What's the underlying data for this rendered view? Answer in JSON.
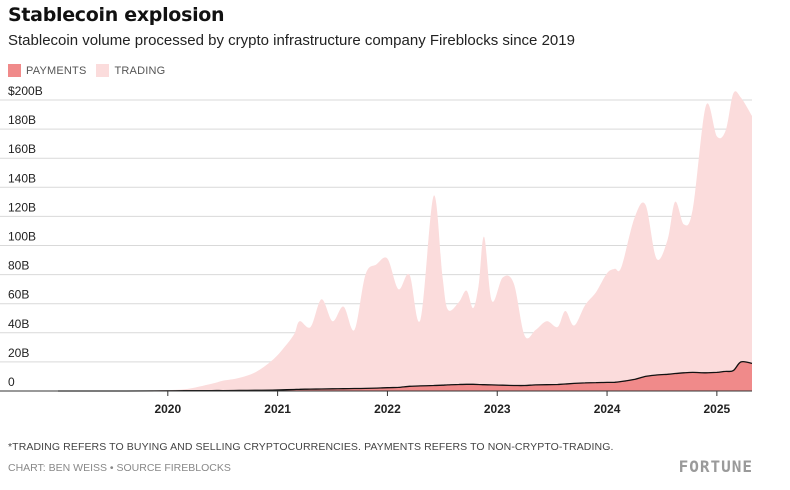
{
  "header": {
    "title": "Stablecoin explosion",
    "subtitle": "Stablecoin volume processed by crypto infrastructure company Fireblocks since 2019"
  },
  "legend": {
    "payments_label": "PAYMENTS",
    "trading_label": "TRADING"
  },
  "footer": {
    "footnote": "*TRADING REFERS TO BUYING AND SELLING CRYPTOCURRENCIES. PAYMENTS REFERS TO NON-CRYPTO-TRADING.",
    "credit": "CHART: BEN WEISS • SOURCE FIREBLOCKS",
    "logo": "FORTUNE"
  },
  "colors": {
    "payments": "#f08a8a",
    "trading": "#fbdcdc",
    "outline": "#111111",
    "grid": "#d9d9d9"
  },
  "chart_data": {
    "type": "area",
    "stacked": true,
    "x_unit": "year",
    "xlim": [
      2019,
      2025.32
    ],
    "ylim": [
      0,
      200
    ],
    "y_ticks": [
      0,
      20,
      40,
      60,
      80,
      100,
      120,
      140,
      160,
      180,
      200
    ],
    "y_tick_labels": [
      "0",
      "20B",
      "40B",
      "60B",
      "80B",
      "100B",
      "120B",
      "140B",
      "160B",
      "180B",
      "$200B"
    ],
    "x_ticks": [
      2020,
      2021,
      2022,
      2023,
      2024,
      2025
    ],
    "x_tick_labels": [
      "2020",
      "2021",
      "2022",
      "2023",
      "2024",
      "2025"
    ],
    "grid": true,
    "legend_position": "top-left",
    "x": [
      2019.0,
      2019.5,
      2019.9,
      2020.15,
      2020.4,
      2020.5,
      2020.65,
      2020.8,
      2020.95,
      2021.05,
      2021.15,
      2021.2,
      2021.3,
      2021.4,
      2021.5,
      2021.6,
      2021.7,
      2021.8,
      2021.9,
      2022.0,
      2022.1,
      2022.2,
      2022.3,
      2022.42,
      2022.5,
      2022.55,
      2022.65,
      2022.72,
      2022.78,
      2022.83,
      2022.88,
      2022.95,
      2023.05,
      2023.15,
      2023.25,
      2023.35,
      2023.45,
      2023.55,
      2023.62,
      2023.7,
      2023.8,
      2023.9,
      2024.0,
      2024.07,
      2024.13,
      2024.25,
      2024.35,
      2024.45,
      2024.55,
      2024.62,
      2024.7,
      2024.78,
      2024.9,
      2025.0,
      2025.08,
      2025.15,
      2025.22,
      2025.32
    ],
    "series": [
      {
        "name": "PAYMENTS",
        "values": [
          0,
          0,
          0.1,
          0.2,
          0.3,
          0.3,
          0.4,
          0.5,
          0.6,
          0.8,
          1,
          1.2,
          1.3,
          1.4,
          1.5,
          1.6,
          1.7,
          1.8,
          2,
          2.3,
          2.5,
          3.2,
          3.5,
          3.8,
          4,
          4.2,
          4.5,
          4.6,
          4.6,
          4.5,
          4.3,
          4.2,
          4,
          3.8,
          3.8,
          4.2,
          4.3,
          4.5,
          4.8,
          5.2,
          5.6,
          5.8,
          5.9,
          6,
          6.5,
          8,
          10,
          11,
          11.5,
          12,
          12.5,
          12.8,
          12.5,
          12.8,
          13.5,
          14,
          20,
          19
        ]
      },
      {
        "name": "TRADING",
        "values": [
          0,
          0,
          0.4,
          1,
          4.7,
          6.7,
          8.6,
          12.5,
          20.4,
          28.2,
          38,
          46.8,
          42.7,
          61.6,
          46.5,
          56.4,
          40.3,
          78.2,
          85,
          88.7,
          67.5,
          76.8,
          45.5,
          130.2,
          75.8,
          51.8,
          56.5,
          64.4,
          52.4,
          68,
          101.7,
          57.8,
          74,
          70.2,
          34.2,
          37.8,
          43.7,
          39.5,
          50.2,
          39.8,
          53.4,
          62.2,
          75.1,
          78,
          78.5,
          111,
          118,
          80,
          92,
          118,
          102,
          112,
          183.5,
          162.2,
          165.5,
          190.5,
          181.5,
          170
        ]
      }
    ]
  }
}
